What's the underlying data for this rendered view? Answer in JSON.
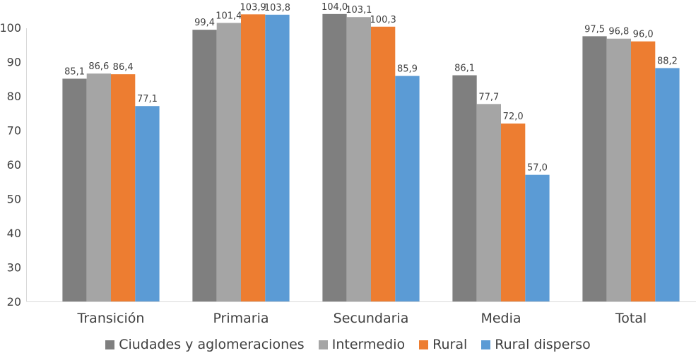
{
  "chart_data": {
    "type": "bar",
    "categories": [
      "Transición",
      "Primaria",
      "Secundaria",
      "Media",
      "Total"
    ],
    "series": [
      {
        "name": "Ciudades y aglomeraciones",
        "color": "#7f7f7f",
        "values": [
          85.1,
          99.4,
          104.0,
          86.1,
          97.5
        ]
      },
      {
        "name": "Intermedio",
        "color": "#a5a5a5",
        "values": [
          86.6,
          101.4,
          103.1,
          77.7,
          96.8
        ]
      },
      {
        "name": "Rural",
        "color": "#ed7d31",
        "values": [
          86.4,
          103.9,
          100.3,
          72.0,
          96.0
        ]
      },
      {
        "name": "Rural disperso",
        "color": "#5b9bd5",
        "values": [
          77.1,
          103.8,
          85.9,
          57.0,
          88.2
        ]
      }
    ],
    "data_labels": [
      [
        "85,1",
        "99,4",
        "104,0",
        "86,1",
        "97,5"
      ],
      [
        "86,6",
        "101,4",
        "103,1",
        "77,7",
        "96,8"
      ],
      [
        "86,4",
        "103,9",
        "100,3",
        "72,0",
        "96,0"
      ],
      [
        "77,1",
        "103,8",
        "85,9",
        "57,0",
        "88,2"
      ]
    ],
    "ylim": [
      20,
      105
    ],
    "yticks": [
      "20",
      "30",
      "40",
      "50",
      "60",
      "70",
      "80",
      "90",
      "100"
    ],
    "legend_position": "bottom",
    "grid": false
  }
}
